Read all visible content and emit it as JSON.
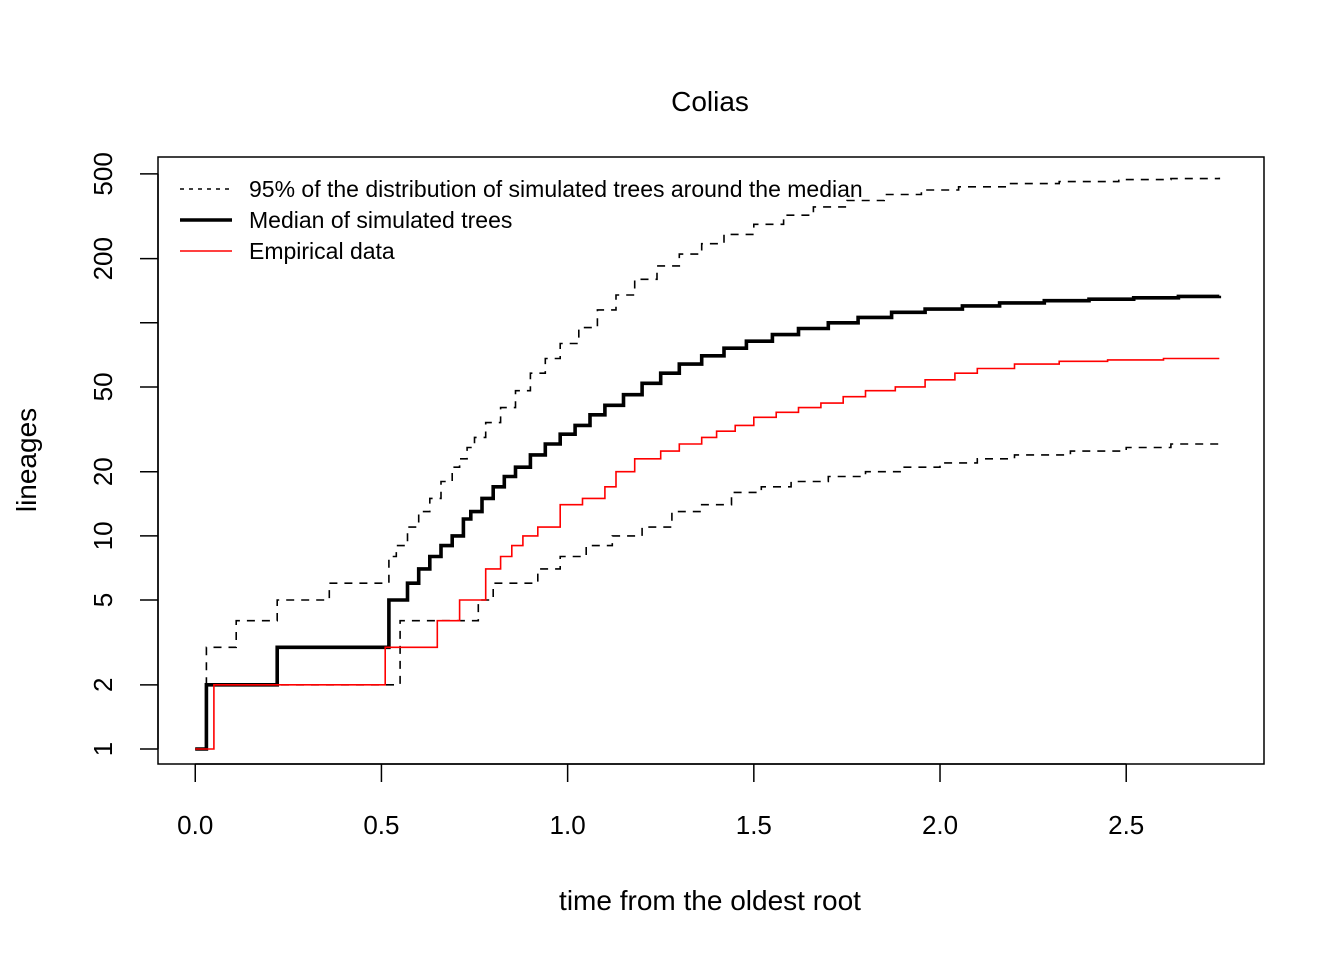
{
  "chart_data": {
    "type": "line",
    "title": "Colias",
    "xlabel": "time from the oldest root",
    "ylabel": "lineages",
    "xlim": [
      -0.1,
      2.87
    ],
    "ylim": [
      0.85,
      600
    ],
    "y_scale": "log",
    "x_ticks": [
      0,
      0.5,
      1,
      1.5,
      2,
      2.5
    ],
    "x_tick_labels": [
      "0.0",
      "0.5",
      "1.0",
      "1.5",
      "2.0",
      "2.5"
    ],
    "y_ticks": [
      1,
      2,
      5,
      10,
      20,
      50,
      100,
      200,
      500
    ],
    "y_tick_labels": [
      "1",
      "2",
      "5",
      "10",
      "20",
      "50",
      "",
      "200",
      "500"
    ],
    "grid": false,
    "legend_position": "top-left",
    "series": [
      {
        "name": "95% of the distribution of simulated trees around the median",
        "style": "dashed",
        "color": "#000000",
        "x": [
          0,
          0.03,
          0.05,
          0.08,
          0.11,
          0.15,
          0.19,
          0.22,
          0.28,
          0.32,
          0.36,
          0.42,
          0.47,
          0.52,
          0.54,
          0.57,
          0.6,
          0.63,
          0.66,
          0.69,
          0.71,
          0.73,
          0.75,
          0.78,
          0.82,
          0.86,
          0.9,
          0.94,
          0.98,
          1.03,
          1.08,
          1.13,
          1.18,
          1.24,
          1.3,
          1.36,
          1.42,
          1.5,
          1.58,
          1.66,
          1.75,
          1.85,
          1.95,
          2.05,
          2.18,
          2.32,
          2.48,
          2.62,
          2.75
        ],
        "y": [
          1,
          3,
          3,
          3,
          4,
          4,
          4,
          5,
          5,
          5,
          6,
          6,
          6,
          8,
          9,
          11,
          13,
          15,
          18,
          21,
          23,
          26,
          29,
          34,
          40,
          48,
          58,
          68,
          80,
          95,
          115,
          135,
          160,
          185,
          210,
          235,
          260,
          290,
          320,
          350,
          375,
          400,
          420,
          435,
          450,
          460,
          470,
          475,
          480
        ]
      },
      {
        "name": "95% of the distribution of simulated trees around the median",
        "style": "dashed",
        "color": "#000000",
        "x": [
          0,
          0.03,
          0.1,
          0.2,
          0.3,
          0.4,
          0.51,
          0.55,
          0.6,
          0.65,
          0.71,
          0.76,
          0.8,
          0.86,
          0.92,
          0.98,
          1.05,
          1.12,
          1.2,
          1.28,
          1.36,
          1.44,
          1.52,
          1.6,
          1.7,
          1.8,
          1.9,
          2.0,
          2.1,
          2.2,
          2.35,
          2.5,
          2.62,
          2.75
        ],
        "y": [
          1,
          2,
          2,
          2,
          2,
          2,
          2,
          4,
          4,
          4,
          4,
          5,
          6,
          6,
          7,
          8,
          9,
          10,
          11,
          13,
          14,
          16,
          17,
          18,
          19,
          20,
          21,
          22,
          23,
          24,
          25,
          26,
          27,
          28
        ]
      },
      {
        "name": "Median of simulated trees",
        "style": "solid-thick",
        "color": "#000000",
        "x": [
          0,
          0.03,
          0.1,
          0.22,
          0.3,
          0.4,
          0.52,
          0.57,
          0.6,
          0.63,
          0.66,
          0.69,
          0.72,
          0.74,
          0.77,
          0.8,
          0.83,
          0.86,
          0.9,
          0.94,
          0.98,
          1.02,
          1.06,
          1.1,
          1.15,
          1.2,
          1.25,
          1.3,
          1.36,
          1.42,
          1.48,
          1.55,
          1.62,
          1.7,
          1.78,
          1.87,
          1.96,
          2.06,
          2.16,
          2.28,
          2.4,
          2.52,
          2.64,
          2.75
        ],
        "y": [
          1,
          2,
          2,
          3,
          3,
          3,
          5,
          6,
          7,
          8,
          9,
          10,
          12,
          13,
          15,
          17,
          19,
          21,
          24,
          27,
          30,
          33,
          37,
          41,
          46,
          52,
          58,
          64,
          70,
          76,
          82,
          88,
          94,
          100,
          106,
          112,
          116,
          120,
          124,
          127,
          129,
          131,
          133,
          134
        ]
      },
      {
        "name": "Empirical data",
        "style": "solid",
        "color": "#ff0000",
        "x": [
          0,
          0.05,
          0.15,
          0.3,
          0.4,
          0.51,
          0.55,
          0.6,
          0.65,
          0.71,
          0.78,
          0.82,
          0.85,
          0.88,
          0.92,
          0.98,
          1.04,
          1.1,
          1.13,
          1.18,
          1.25,
          1.3,
          1.36,
          1.4,
          1.45,
          1.5,
          1.56,
          1.62,
          1.68,
          1.74,
          1.8,
          1.88,
          1.96,
          2.04,
          2.1,
          2.2,
          2.32,
          2.45,
          2.6,
          2.75
        ],
        "y": [
          1,
          2,
          2,
          2,
          2,
          3,
          3,
          3,
          4,
          5,
          7,
          8,
          9,
          10,
          11,
          14,
          15,
          17,
          20,
          23,
          25,
          27,
          29,
          31,
          33,
          36,
          38,
          40,
          42,
          45,
          48,
          50,
          54,
          58,
          61,
          64,
          66,
          67,
          68,
          68
        ]
      }
    ]
  }
}
